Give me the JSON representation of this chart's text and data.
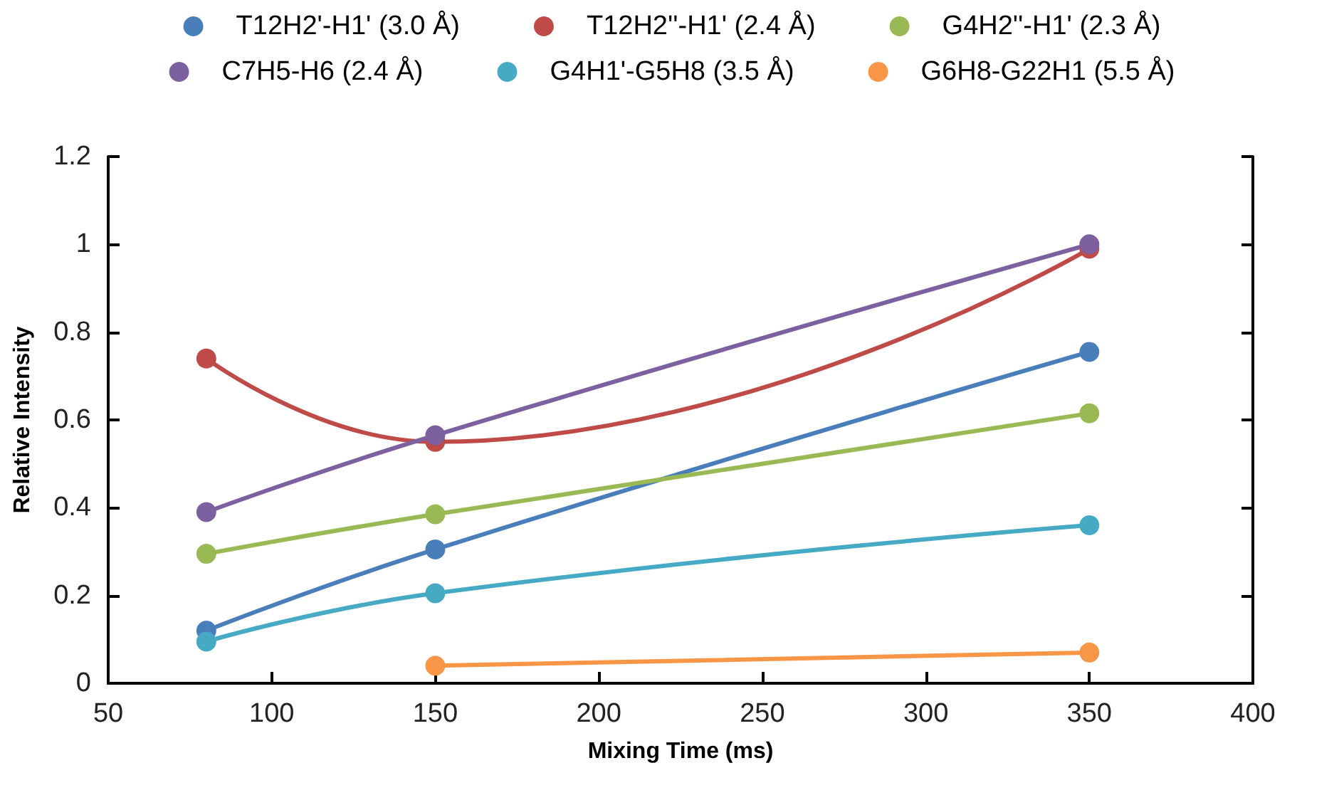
{
  "chart_data": {
    "type": "line",
    "xlabel": "Mixing Time (ms)",
    "ylabel": "Relative Intensity",
    "xlim": [
      50,
      400
    ],
    "xticks": [
      50,
      100,
      150,
      200,
      250,
      300,
      350,
      400
    ],
    "ylim": [
      0,
      1.2
    ],
    "yticks": [
      0,
      0.2,
      0.4,
      0.6,
      0.8,
      1,
      1.2
    ],
    "grid": false,
    "legend": "top",
    "marker": "circle",
    "line_style": "solid",
    "series": [
      {
        "name": "T12H2'-H1' (3.0 Å)",
        "color": "#4a7ebb",
        "x": [
          80,
          150,
          350
        ],
        "values": [
          0.12,
          0.305,
          0.755
        ]
      },
      {
        "name": "T12H2''-H1' (2.4 Å)",
        "color": "#be4b48",
        "x": [
          80,
          150,
          350
        ],
        "values": [
          0.74,
          0.55,
          0.99
        ]
      },
      {
        "name": "G4H2''-H1' (2.3 Å)",
        "color": "#98b954",
        "x": [
          80,
          150,
          350
        ],
        "values": [
          0.295,
          0.385,
          0.615
        ]
      },
      {
        "name": "C7H5-H6 (2.4 Å)",
        "color": "#7d60a0",
        "x": [
          80,
          150,
          350
        ],
        "values": [
          0.39,
          0.565,
          1.0
        ]
      },
      {
        "name": "G4H1'-G5H8 (3.5 Å)",
        "color": "#46aac5",
        "x": [
          80,
          150,
          350
        ],
        "values": [
          0.095,
          0.205,
          0.36
        ]
      },
      {
        "name": "G6H8-G22H1 (5.5 Å)",
        "color": "#f79646",
        "x": [
          150,
          350
        ],
        "values": [
          0.04,
          0.07
        ]
      }
    ]
  }
}
